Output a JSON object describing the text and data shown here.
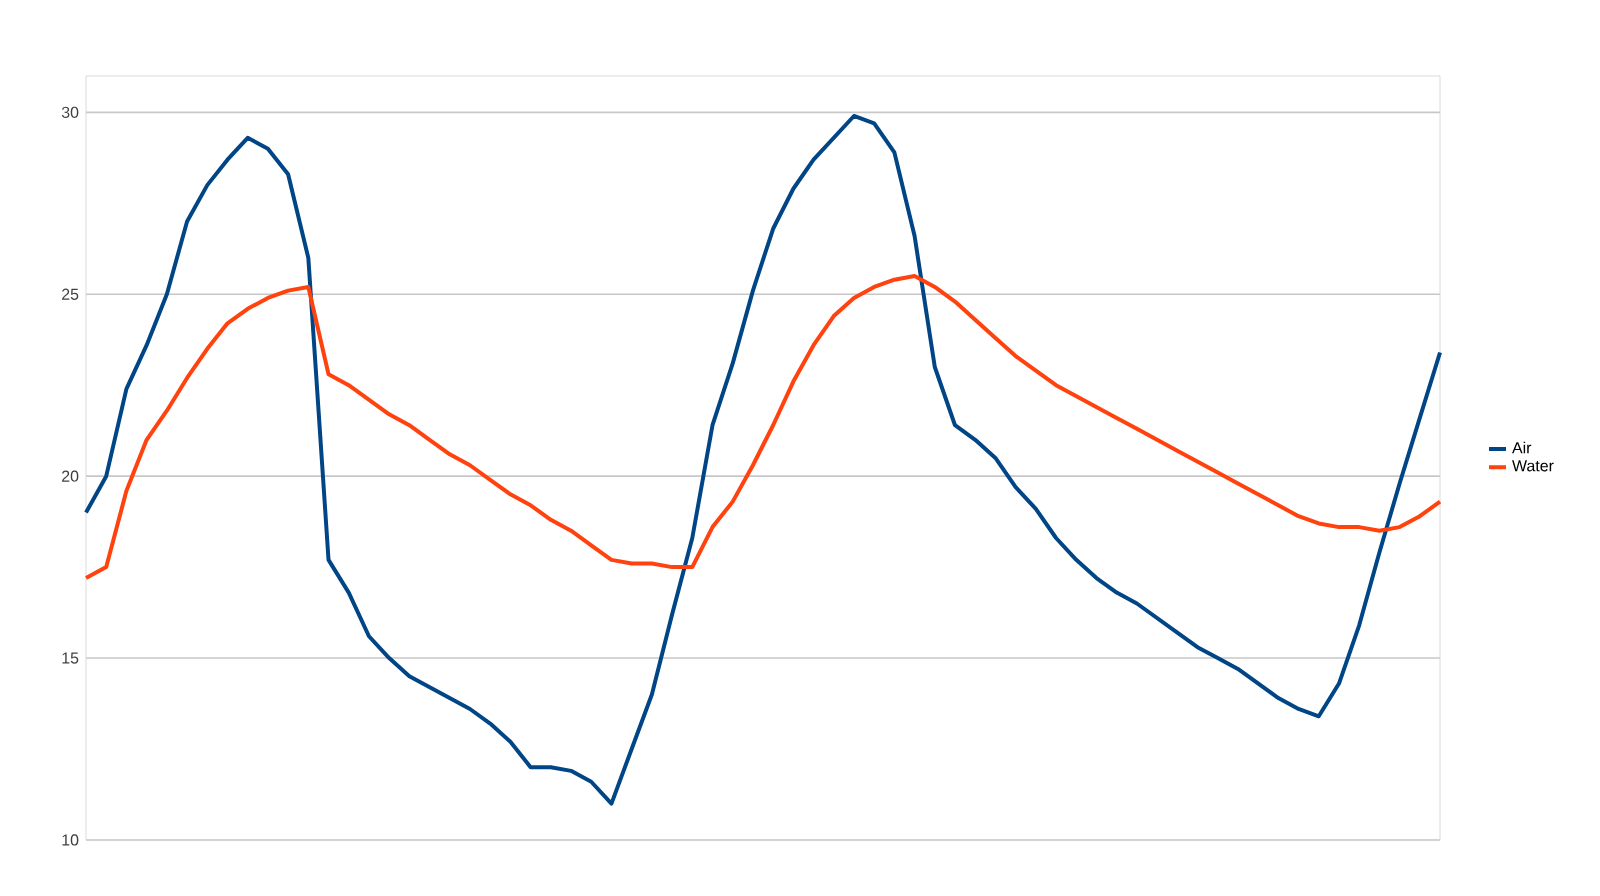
{
  "chart_data": {
    "type": "line",
    "categories": [
      null,
      null,
      null,
      null,
      null,
      null,
      null,
      null,
      null,
      null,
      null,
      null,
      null,
      null,
      null,
      null,
      null,
      null,
      null,
      null,
      null,
      null,
      null,
      null,
      null,
      null,
      null,
      null,
      null,
      null,
      null,
      null,
      null,
      null,
      null,
      null,
      null,
      null,
      null,
      null,
      null,
      null,
      null,
      null,
      null,
      null,
      null,
      null,
      null,
      null,
      null,
      null,
      null,
      null,
      null,
      null,
      null,
      null,
      null,
      null,
      null,
      null,
      null,
      null,
      null,
      null,
      null,
      null
    ],
    "series": [
      {
        "name": "Air",
        "color": "#004586",
        "values": [
          19.0,
          20.0,
          22.4,
          23.6,
          25.0,
          27.0,
          28.0,
          28.7,
          29.3,
          29.0,
          28.3,
          26.0,
          17.7,
          16.8,
          15.6,
          15.0,
          14.5,
          14.2,
          13.9,
          13.6,
          13.2,
          12.7,
          12.0,
          12.0,
          11.9,
          11.6,
          11.0,
          12.5,
          14.0,
          16.2,
          18.3,
          21.4,
          23.1,
          25.1,
          26.8,
          27.9,
          28.7,
          29.3,
          29.9,
          29.7,
          28.9,
          26.6,
          23.0,
          21.4,
          21.0,
          20.5,
          19.7,
          19.1,
          18.3,
          17.7,
          17.2,
          16.8,
          16.5,
          16.1,
          15.7,
          15.3,
          15.0,
          14.7,
          14.3,
          13.9,
          13.6,
          13.4,
          14.3,
          15.9,
          17.9,
          19.8,
          21.6,
          23.4
        ]
      },
      {
        "name": "Water",
        "color": "#ff420e",
        "values": [
          17.2,
          17.5,
          19.6,
          21.0,
          21.8,
          22.7,
          23.5,
          24.2,
          24.6,
          24.9,
          25.1,
          25.2,
          22.8,
          22.5,
          22.1,
          21.7,
          21.4,
          21.0,
          20.6,
          20.3,
          19.9,
          19.5,
          19.2,
          18.8,
          18.5,
          18.1,
          17.7,
          17.6,
          17.6,
          17.5,
          17.5,
          18.6,
          19.3,
          20.3,
          21.4,
          22.6,
          23.6,
          24.4,
          24.9,
          25.2,
          25.4,
          25.5,
          25.2,
          24.8,
          24.3,
          23.8,
          23.3,
          22.9,
          22.5,
          22.2,
          21.9,
          21.6,
          21.3,
          21.0,
          20.7,
          20.4,
          20.1,
          19.8,
          19.5,
          19.2,
          18.9,
          18.7,
          18.6,
          18.6,
          18.5,
          18.6,
          18.9,
          19.3
        ]
      }
    ],
    "ylim": [
      10,
      31
    ],
    "yticks": [
      10,
      15,
      20,
      25,
      30
    ],
    "grid": "y",
    "legend": "right",
    "marker": "none",
    "line_style": "solid"
  }
}
